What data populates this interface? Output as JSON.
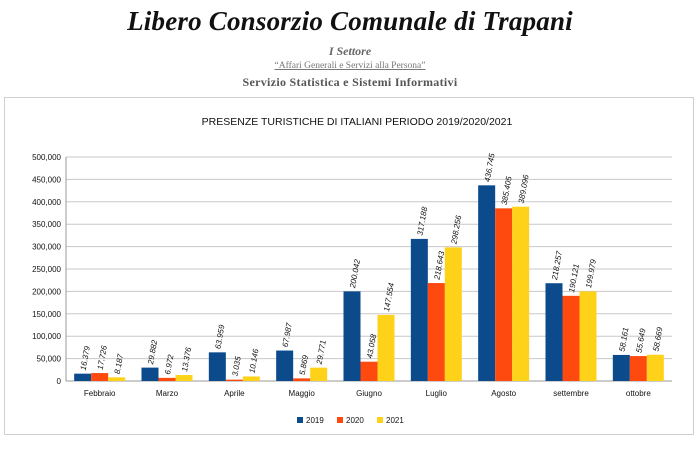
{
  "header": {
    "org_title": "Libero Consorzio Comunale di Trapani",
    "sector": "I Settore",
    "subtitle": "“Affari Generali e Servizi alla Persona”",
    "service": "Servizio  Statistica e Sistemi Informativi"
  },
  "chart_data": {
    "type": "bar",
    "title": "PRESENZE TURISTICHE DI ITALIANI  PERIODO 2019/2020/2021",
    "xlabel": "",
    "ylabel": "",
    "ylim": [
      0,
      500000
    ],
    "yticks": [
      0,
      50000,
      100000,
      150000,
      200000,
      250000,
      300000,
      350000,
      400000,
      450000,
      500000
    ],
    "ytick_labels": [
      "0",
      "50,000",
      "100,000",
      "150,000",
      "200,000",
      "250,000",
      "300,000",
      "350,000",
      "400,000",
      "450,000",
      "500,000"
    ],
    "grid": true,
    "legend_position": "bottom",
    "categories": [
      "Febbraio",
      "Marzo",
      "Aprile",
      "Maggio",
      "Giugno",
      "Luglio",
      "Agosto",
      "settembre",
      "ottobre"
    ],
    "series": [
      {
        "name": "2019",
        "color": "#0b4a8b",
        "values": [
          16379,
          29882,
          63959,
          67987,
          200042,
          317188,
          436745,
          218257,
          58161
        ],
        "labels": [
          "16.379",
          "29.882",
          "63.959",
          "67.987",
          "200.042",
          "317.188",
          "436.745",
          "218.257",
          "58.161"
        ]
      },
      {
        "name": "2020",
        "color": "#ff4a0f",
        "values": [
          17726,
          6972,
          3035,
          5869,
          43058,
          218643,
          385405,
          190121,
          55649
        ],
        "labels": [
          "17.726",
          "6.972",
          "3.035",
          "5.869",
          "43.058",
          "218.643",
          "385.405",
          "190.121",
          "55.649"
        ]
      },
      {
        "name": "2021",
        "color": "#ffd21a",
        "values": [
          8187,
          13376,
          10146,
          29771,
          147554,
          298256,
          389096,
          199979,
          58669
        ],
        "labels": [
          "8.187",
          "13.376",
          "10.146",
          "29.771",
          "147.554",
          "298.256",
          "389.096",
          "199.979",
          "58.669"
        ]
      }
    ]
  }
}
